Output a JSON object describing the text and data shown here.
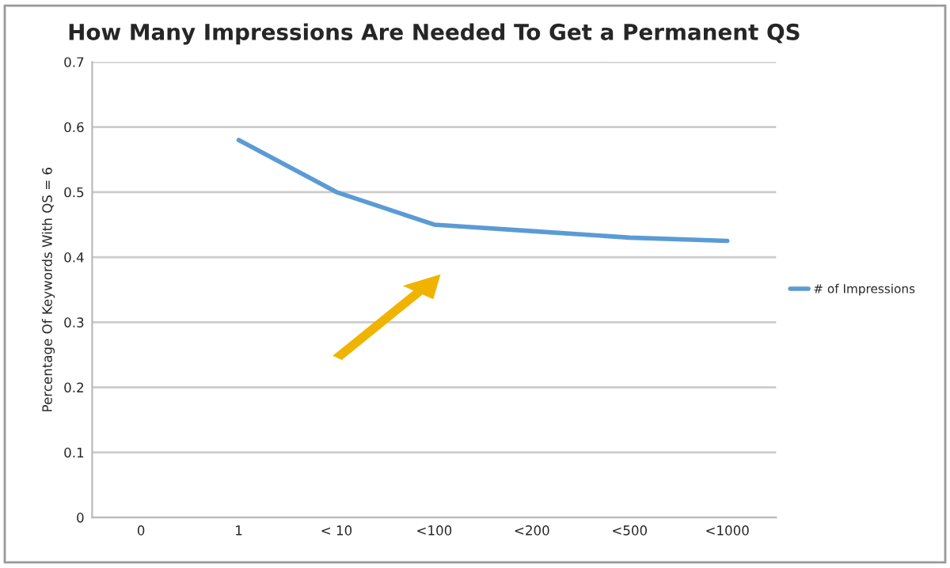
{
  "chart_data": {
    "type": "line",
    "title": "How Many Impressions Are Needed To Get a Permanent QS",
    "ylabel": "Percentage Of Keywords With QS = 6",
    "categories": [
      "0",
      "1",
      "< 10",
      "<100",
      "<200",
      "<500",
      "<1000"
    ],
    "series": [
      {
        "name": "# of Impressions",
        "color": "#5b9bd5",
        "values": [
          null,
          0.58,
          0.5,
          0.45,
          0.44,
          0.43,
          0.425
        ]
      }
    ],
    "ylim": [
      0,
      0.7
    ],
    "yticks": [
      0,
      0.1,
      0.2,
      0.3,
      0.4,
      0.5,
      0.6,
      0.7
    ],
    "grid": "y",
    "legend": "right",
    "marker": "none",
    "line_style": "solid"
  }
}
